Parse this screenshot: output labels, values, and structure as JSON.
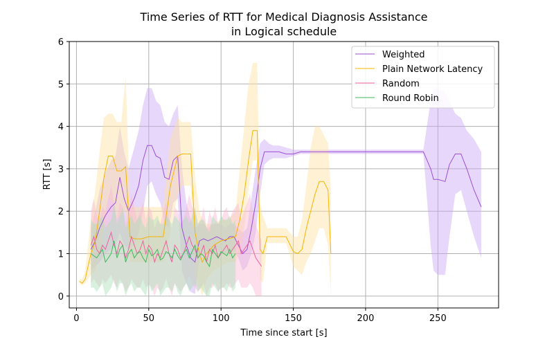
{
  "chart_data": {
    "type": "line",
    "title": "Time Series of RTT for Medical Diagnosis Assistance",
    "subtitle": "in Logical schedule",
    "xlabel": "Time since start [s]",
    "ylabel": "RTT [s]",
    "xlim": [
      -5,
      292
    ],
    "ylim": [
      -0.28,
      6
    ],
    "xticks": [
      0,
      50,
      100,
      150,
      200,
      250
    ],
    "yticks": [
      0,
      1,
      2,
      3,
      4,
      5,
      6
    ],
    "grid": true,
    "legend_position": "top-right",
    "series": [
      {
        "name": "Weighted",
        "color": "#9b4dd6",
        "band_color": "#c9a7f5",
        "x": [
          10,
          13,
          16,
          20,
          24,
          27,
          30,
          33,
          36,
          40,
          43,
          46,
          49,
          52,
          55,
          58,
          61,
          64,
          67,
          70,
          73,
          76,
          79,
          82,
          85,
          88,
          91,
          94,
          97,
          100,
          103,
          106,
          109,
          112,
          115,
          118,
          121,
          124,
          127,
          130,
          133,
          136,
          140,
          145,
          150,
          155,
          160,
          170,
          180,
          190,
          200,
          210,
          220,
          230,
          240,
          245,
          247,
          250,
          255,
          258,
          262,
          266,
          270,
          275,
          280
        ],
        "y": [
          1.1,
          1.3,
          1.6,
          1.9,
          2.1,
          2.2,
          2.8,
          2.3,
          2.0,
          2.3,
          2.6,
          3.2,
          3.55,
          3.55,
          3.3,
          3.25,
          2.8,
          2.75,
          3.2,
          3.3,
          1.6,
          1.2,
          0.9,
          0.8,
          1.3,
          1.35,
          1.3,
          1.35,
          1.4,
          1.35,
          1.3,
          1.4,
          1.4,
          1.2,
          1.0,
          1.1,
          1.6,
          2.2,
          3.0,
          3.4,
          3.4,
          3.4,
          3.4,
          3.35,
          3.35,
          3.4,
          3.4,
          3.4,
          3.4,
          3.4,
          3.4,
          3.4,
          3.4,
          3.4,
          3.4,
          3.0,
          2.75,
          2.75,
          2.7,
          3.1,
          3.35,
          3.35,
          3.0,
          2.5,
          2.1
        ],
        "lower": [
          0.6,
          0.7,
          0.8,
          1.0,
          1.1,
          1.2,
          1.5,
          1.2,
          1.1,
          1.2,
          1.5,
          2.0,
          2.6,
          2.7,
          2.4,
          2.2,
          1.7,
          1.6,
          2.2,
          2.3,
          0.6,
          0.3,
          0.1,
          0.05,
          0.9,
          1.0,
          1.0,
          1.0,
          1.1,
          1.0,
          1.0,
          1.1,
          1.1,
          0.9,
          0.6,
          0.7,
          1.0,
          1.5,
          2.4,
          3.1,
          3.2,
          3.25,
          3.25,
          3.25,
          3.3,
          3.35,
          3.35,
          3.35,
          3.35,
          3.35,
          3.35,
          3.35,
          3.35,
          3.35,
          3.35,
          1.2,
          0.6,
          0.5,
          0.5,
          1.4,
          2.4,
          2.5,
          2.0,
          1.4,
          0.9
        ],
        "upper": [
          1.6,
          2.0,
          2.5,
          2.9,
          3.2,
          3.3,
          4.0,
          3.4,
          3.0,
          3.5,
          3.9,
          4.5,
          4.9,
          4.9,
          4.6,
          4.5,
          4.1,
          4.0,
          4.3,
          4.5,
          3.0,
          2.2,
          1.8,
          1.6,
          1.7,
          1.7,
          1.6,
          1.7,
          1.7,
          1.7,
          1.6,
          1.7,
          1.7,
          1.6,
          1.5,
          1.6,
          2.3,
          3.0,
          3.6,
          3.7,
          3.6,
          3.55,
          3.55,
          3.5,
          3.45,
          3.45,
          3.45,
          3.45,
          3.45,
          3.45,
          3.45,
          3.45,
          3.45,
          3.45,
          3.45,
          4.6,
          4.9,
          4.9,
          4.8,
          4.6,
          4.3,
          4.2,
          3.9,
          3.7,
          3.4
        ]
      },
      {
        "name": "Plain Network Latency",
        "color": "#f5b400",
        "band_color": "#ffe3a0",
        "x": [
          2,
          4,
          6,
          8,
          10,
          13,
          16,
          19,
          22,
          25,
          28,
          31,
          34,
          37,
          40,
          45,
          50,
          55,
          60,
          65,
          70,
          73,
          76,
          79,
          82,
          85,
          87,
          90,
          95,
          100,
          105,
          110,
          113,
          116,
          119,
          122,
          125,
          127,
          129,
          132,
          135,
          140,
          145,
          150,
          153,
          156,
          159,
          162,
          165,
          168,
          171,
          174,
          176
        ],
        "y": [
          0.35,
          0.3,
          0.4,
          0.7,
          1.0,
          1.3,
          2.0,
          2.8,
          3.3,
          3.3,
          2.95,
          2.95,
          3.05,
          1.4,
          1.35,
          1.35,
          1.4,
          1.4,
          1.4,
          2.6,
          3.3,
          3.35,
          3.35,
          3.35,
          1.5,
          1.0,
          0.8,
          1.0,
          1.2,
          1.3,
          1.35,
          1.4,
          1.8,
          2.4,
          3.2,
          3.9,
          3.9,
          1.1,
          1.0,
          1.4,
          1.4,
          1.4,
          1.4,
          1.05,
          1.0,
          1.1,
          1.6,
          2.0,
          2.4,
          2.7,
          2.7,
          2.5,
          1.0
        ],
        "lower": [
          0.3,
          0.25,
          0.3,
          0.4,
          0.5,
          0.6,
          1.0,
          1.6,
          2.3,
          2.2,
          1.8,
          1.9,
          2.0,
          0.8,
          0.8,
          0.8,
          0.8,
          0.8,
          0.8,
          1.5,
          2.4,
          2.6,
          2.6,
          2.6,
          0.5,
          0.2,
          0.0,
          0.4,
          0.6,
          0.7,
          0.8,
          0.8,
          1.0,
          1.6,
          2.5,
          3.2,
          3.2,
          0.4,
          0.3,
          1.25,
          1.25,
          1.25,
          1.25,
          0.7,
          0.6,
          0.5,
          0.8,
          1.0,
          1.3,
          1.6,
          1.6,
          1.2,
          0.0
        ],
        "upper": [
          0.4,
          0.4,
          0.6,
          1.2,
          1.8,
          2.5,
          3.4,
          4.2,
          4.3,
          4.3,
          4.1,
          4.1,
          5.2,
          2.2,
          2.1,
          2.1,
          2.1,
          2.1,
          2.1,
          3.7,
          4.2,
          4.1,
          4.1,
          4.1,
          2.8,
          2.0,
          1.8,
          1.7,
          1.7,
          1.8,
          1.8,
          2.0,
          3.0,
          4.0,
          5.0,
          5.5,
          5.5,
          2.2,
          1.9,
          1.6,
          1.6,
          1.6,
          1.6,
          1.4,
          1.4,
          1.8,
          2.6,
          3.5,
          4.0,
          4.0,
          3.8,
          3.6,
          2.5
        ]
      },
      {
        "name": "Random",
        "color": "#f0629e",
        "band_color": "#f9b8d3",
        "x": [
          10,
          12,
          14,
          16,
          18,
          20,
          22,
          24,
          26,
          28,
          30,
          32,
          34,
          36,
          38,
          40,
          42,
          44,
          46,
          48,
          50,
          52,
          54,
          56,
          58,
          60,
          62,
          64,
          66,
          68,
          70,
          72,
          74,
          76,
          78,
          80,
          82,
          84,
          86,
          88,
          90,
          92,
          94,
          96,
          98,
          100,
          102,
          104,
          106,
          108,
          110,
          112,
          114,
          116,
          118,
          120,
          122,
          124,
          126,
          128
        ],
        "y": [
          1.2,
          1.4,
          1.1,
          1.0,
          1.2,
          1.1,
          1.3,
          1.5,
          1.2,
          1.0,
          1.3,
          1.2,
          0.9,
          1.1,
          1.4,
          1.2,
          1.0,
          1.1,
          1.3,
          1.0,
          1.2,
          1.1,
          0.8,
          1.0,
          0.9,
          1.1,
          1.3,
          1.0,
          0.8,
          1.2,
          1.1,
          0.9,
          1.0,
          1.2,
          1.4,
          1.2,
          1.1,
          0.9,
          1.0,
          1.2,
          0.8,
          1.1,
          1.0,
          1.2,
          0.9,
          1.0,
          1.1,
          1.2,
          1.0,
          1.1,
          1.2,
          1.3,
          1.0,
          1.1,
          1.2,
          1.3,
          1.1,
          0.9,
          0.8,
          0.7
        ],
        "lower": [
          0.3,
          0.4,
          0.3,
          0.2,
          0.4,
          0.3,
          0.4,
          0.5,
          0.3,
          0.2,
          0.4,
          0.3,
          0.1,
          0.2,
          0.4,
          0.3,
          0.2,
          0.2,
          0.4,
          0.2,
          0.3,
          0.2,
          0.0,
          0.2,
          0.1,
          0.2,
          0.4,
          0.2,
          0.0,
          0.3,
          0.2,
          0.1,
          0.2,
          0.3,
          0.5,
          0.3,
          0.2,
          0.1,
          0.2,
          0.3,
          0.0,
          0.2,
          0.2,
          0.3,
          0.1,
          0.2,
          0.2,
          0.3,
          0.2,
          0.2,
          0.3,
          0.4,
          0.2,
          0.2,
          0.2,
          0.3,
          0.2,
          0.0,
          0.0,
          0.0
        ],
        "upper": [
          2.0,
          2.3,
          1.9,
          1.8,
          2.1,
          2.0,
          2.3,
          2.6,
          2.2,
          1.8,
          2.2,
          2.1,
          1.7,
          2.0,
          2.4,
          2.1,
          1.8,
          2.0,
          2.2,
          1.8,
          2.1,
          2.0,
          1.6,
          1.8,
          1.7,
          2.0,
          2.2,
          1.8,
          1.6,
          2.1,
          2.0,
          1.7,
          1.8,
          2.1,
          2.4,
          2.1,
          2.0,
          1.7,
          1.8,
          2.1,
          1.6,
          2.0,
          1.8,
          2.1,
          1.7,
          1.8,
          2.0,
          2.1,
          1.8,
          2.0,
          2.1,
          2.2,
          1.8,
          2.0,
          2.2,
          2.4,
          2.0,
          1.7,
          1.5,
          1.3
        ]
      },
      {
        "name": "Round Robin",
        "color": "#3cba5e",
        "band_color": "#a8dfb6",
        "x": [
          10,
          12,
          14,
          16,
          18,
          20,
          22,
          24,
          26,
          28,
          30,
          32,
          34,
          36,
          38,
          40,
          42,
          44,
          46,
          48,
          50,
          52,
          54,
          56,
          58,
          60,
          62,
          64,
          66,
          68,
          70,
          72,
          74,
          76,
          78,
          80,
          82,
          84,
          86,
          88,
          90,
          92,
          94,
          96,
          98,
          100,
          102,
          104,
          106,
          108,
          110
        ],
        "y": [
          1.0,
          0.95,
          0.9,
          1.0,
          1.1,
          0.8,
          0.9,
          1.0,
          1.3,
          0.9,
          1.1,
          1.2,
          0.8,
          1.0,
          1.1,
          0.9,
          1.0,
          1.05,
          0.9,
          0.8,
          1.1,
          0.95,
          1.0,
          1.1,
          0.85,
          0.9,
          1.05,
          1.0,
          0.9,
          1.1,
          0.95,
          0.85,
          1.0,
          1.1,
          0.9,
          1.05,
          1.2,
          0.9,
          1.0,
          0.95,
          0.8,
          0.7,
          1.1,
          1.0,
          0.9,
          1.05,
          1.0,
          0.95,
          1.1,
          0.9,
          1.0
        ],
        "lower": [
          0.2,
          0.2,
          0.1,
          0.2,
          0.3,
          0.0,
          0.1,
          0.2,
          0.4,
          0.1,
          0.3,
          0.3,
          0.0,
          0.2,
          0.3,
          0.1,
          0.2,
          0.2,
          0.1,
          0.0,
          0.3,
          0.1,
          0.2,
          0.3,
          0.0,
          0.1,
          0.2,
          0.2,
          0.1,
          0.3,
          0.1,
          0.0,
          0.2,
          0.3,
          0.1,
          0.2,
          0.3,
          0.1,
          0.2,
          0.1,
          0.0,
          0.0,
          0.3,
          0.2,
          0.1,
          0.2,
          0.2,
          0.1,
          0.3,
          0.1,
          0.2
        ],
        "upper": [
          1.8,
          1.7,
          1.7,
          1.8,
          1.9,
          1.6,
          1.7,
          1.8,
          2.2,
          1.7,
          1.9,
          2.1,
          1.6,
          1.8,
          1.9,
          1.7,
          1.8,
          1.9,
          1.7,
          1.6,
          1.9,
          1.8,
          1.8,
          1.9,
          1.7,
          1.7,
          1.9,
          1.8,
          1.7,
          1.9,
          1.8,
          1.7,
          1.8,
          1.9,
          1.7,
          1.9,
          2.1,
          1.7,
          1.8,
          1.8,
          1.6,
          1.5,
          1.9,
          1.8,
          1.7,
          1.9,
          1.8,
          1.8,
          1.9,
          1.7,
          1.8
        ]
      }
    ]
  }
}
